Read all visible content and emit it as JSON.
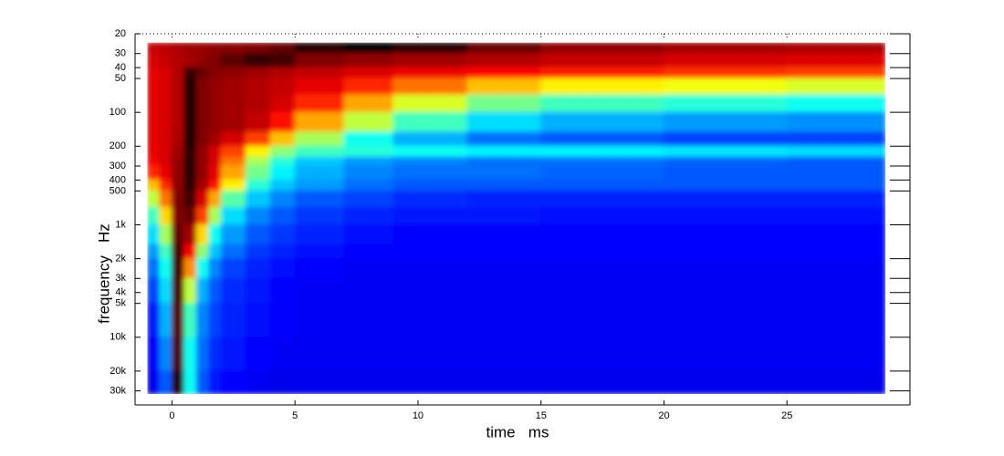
{
  "chart_data": {
    "type": "heatmap",
    "x_label": "time   ms",
    "y_label": "frequency   Hz",
    "xlim": [
      -1.5,
      30
    ],
    "xticks": [
      0,
      5,
      10,
      15,
      20,
      25
    ],
    "ylim": [
      20,
      40000
    ],
    "yscale": "log",
    "y_reversed": true,
    "yticks": [
      20,
      30,
      40,
      50,
      100,
      200,
      300,
      400,
      500,
      {
        "value": 1000,
        "label": "1k"
      },
      {
        "value": 2000,
        "label": "2k"
      },
      {
        "value": 3000,
        "label": "3k"
      },
      {
        "value": 4000,
        "label": "4k"
      },
      {
        "value": 5000,
        "label": "5k"
      },
      {
        "value": 10000,
        "label": "10k"
      },
      {
        "value": 20000,
        "label": "20k"
      },
      {
        "value": 30000,
        "label": "30k"
      }
    ],
    "x": [
      -1,
      -0.5,
      0,
      0.5,
      1,
      1.5,
      2,
      3,
      4,
      5,
      7,
      9,
      12,
      15,
      20,
      25,
      29
    ],
    "y": [
      24,
      30,
      40,
      50,
      70,
      100,
      150,
      200,
      250,
      300,
      400,
      500,
      700,
      1000,
      1500,
      2000,
      3000,
      5000,
      10000,
      20000,
      32000
    ],
    "colormap": [
      {
        "value": 0,
        "color": "#00008f"
      },
      {
        "value": 12,
        "color": "#0000ff"
      },
      {
        "value": 35,
        "color": "#00ffff"
      },
      {
        "value": 55,
        "color": "#ffff00"
      },
      {
        "value": 75,
        "color": "#ff0000"
      },
      {
        "value": 90,
        "color": "#800000"
      },
      {
        "value": 100,
        "color": "#000000"
      }
    ],
    "z": [
      [
        82,
        83,
        85,
        86,
        87,
        88,
        89,
        90,
        92,
        97,
        100,
        97,
        92,
        88,
        86,
        85
      ],
      [
        80,
        82,
        84,
        86,
        88,
        90,
        93,
        96,
        95,
        90,
        88,
        86,
        84,
        82,
        80,
        79
      ],
      [
        78,
        80,
        84,
        96,
        92,
        90,
        88,
        86,
        84,
        82,
        79,
        77,
        75,
        73,
        71,
        70
      ],
      [
        78,
        80,
        84,
        98,
        90,
        88,
        86,
        84,
        82,
        78,
        72,
        66,
        60,
        56,
        54,
        52
      ],
      [
        78,
        80,
        84,
        98,
        90,
        88,
        86,
        84,
        80,
        72,
        62,
        52,
        44,
        40,
        38,
        36
      ],
      [
        78,
        80,
        84,
        98,
        90,
        88,
        86,
        82,
        74,
        62,
        50,
        40,
        32,
        28,
        26,
        25
      ],
      [
        78,
        80,
        85,
        98,
        90,
        86,
        80,
        70,
        60,
        48,
        36,
        28,
        22,
        20,
        18,
        18
      ],
      [
        78,
        80,
        86,
        97,
        88,
        80,
        70,
        56,
        46,
        40,
        38,
        36,
        34,
        34,
        33,
        32
      ],
      [
        76,
        80,
        88,
        97,
        88,
        80,
        66,
        48,
        38,
        30,
        26,
        24,
        22,
        22,
        21,
        20
      ],
      [
        72,
        78,
        88,
        97,
        88,
        78,
        62,
        44,
        34,
        28,
        24,
        22,
        22,
        21,
        20,
        20
      ],
      [
        60,
        72,
        88,
        97,
        86,
        74,
        56,
        38,
        30,
        26,
        22,
        20,
        20,
        20,
        20,
        20
      ],
      [
        50,
        66,
        90,
        95,
        80,
        62,
        42,
        30,
        24,
        20,
        18,
        16,
        15,
        15,
        15,
        15
      ],
      [
        40,
        58,
        90,
        92,
        70,
        48,
        32,
        24,
        20,
        17,
        15,
        14,
        14,
        13,
        13,
        13
      ],
      [
        32,
        48,
        92,
        86,
        58,
        36,
        26,
        20,
        17,
        15,
        13,
        12,
        12,
        12,
        12,
        12
      ],
      [
        26,
        40,
        94,
        76,
        46,
        30,
        22,
        17,
        15,
        13,
        12,
        12,
        12,
        12,
        12,
        12
      ],
      [
        22,
        36,
        95,
        64,
        36,
        24,
        18,
        15,
        13,
        12,
        11,
        11,
        11,
        11,
        11,
        11
      ],
      [
        18,
        32,
        94,
        50,
        28,
        20,
        16,
        14,
        12,
        11,
        11,
        11,
        11,
        11,
        11,
        11
      ],
      [
        14,
        28,
        93,
        40,
        24,
        18,
        15,
        13,
        12,
        11,
        11,
        11,
        11,
        11,
        11,
        11
      ],
      [
        12,
        24,
        94,
        36,
        22,
        16,
        14,
        12,
        11,
        11,
        11,
        11,
        11,
        11,
        11,
        11
      ],
      [
        10,
        20,
        97,
        36,
        20,
        14,
        12,
        11,
        10,
        10,
        10,
        10,
        10,
        10,
        10,
        10
      ]
    ]
  }
}
